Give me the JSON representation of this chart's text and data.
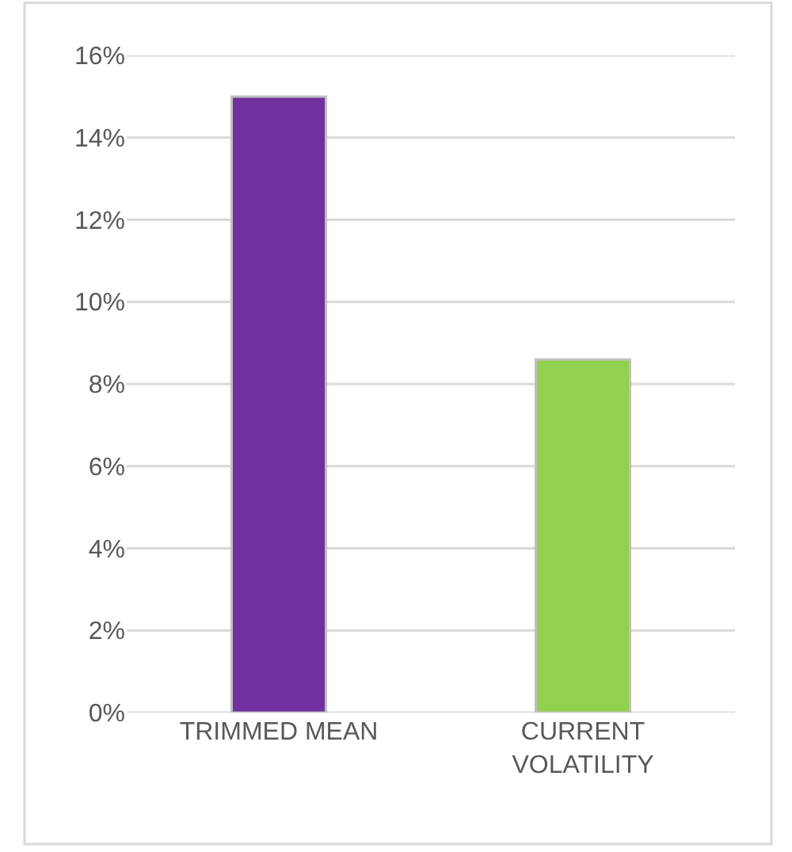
{
  "chart_data": {
    "type": "bar",
    "categories": [
      "TRIMMED MEAN",
      "CURRENT VOLATILITY"
    ],
    "values": [
      15,
      8.6
    ],
    "colors": [
      "#7030a0",
      "#92d050"
    ],
    "ylim": [
      0,
      16
    ],
    "yticks": [
      {
        "value": 0,
        "label": "0%"
      },
      {
        "value": 2,
        "label": "2%"
      },
      {
        "value": 4,
        "label": "4%"
      },
      {
        "value": 6,
        "label": "6%"
      },
      {
        "value": 8,
        "label": "8%"
      },
      {
        "value": 10,
        "label": "10%"
      },
      {
        "value": 12,
        "label": "12%"
      },
      {
        "value": 14,
        "label": "14%"
      },
      {
        "value": 16,
        "label": "16%"
      }
    ],
    "grid": "y"
  }
}
